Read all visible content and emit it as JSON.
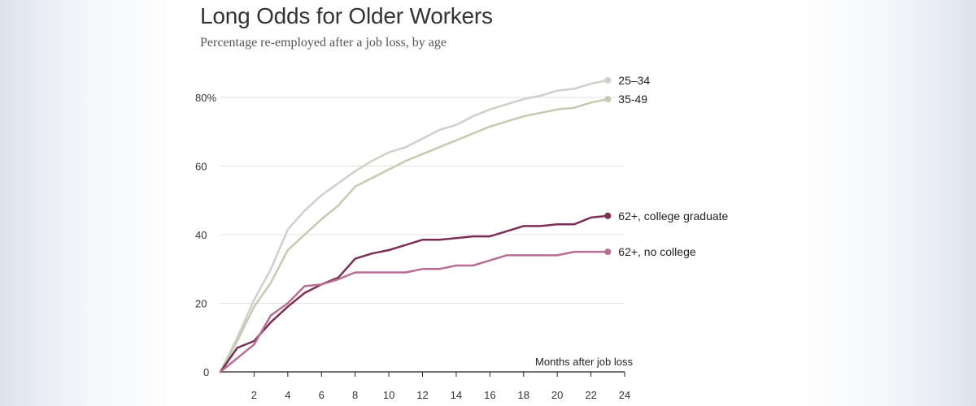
{
  "chart_data": {
    "type": "line",
    "title": "Long Odds for Older Workers",
    "subtitle": "Percentage re-employed after a job loss, by age",
    "xlabel": "Months after job loss",
    "ylabel": "",
    "xlim": [
      0,
      24
    ],
    "ylim": [
      0,
      85
    ],
    "x_ticks": [
      2,
      4,
      6,
      8,
      10,
      12,
      14,
      16,
      18,
      20,
      22,
      24
    ],
    "y_ticks": [
      0,
      20,
      40,
      60,
      80
    ],
    "y_tick_labels": [
      "0",
      "20",
      "40",
      "60",
      "80%"
    ],
    "grid": "horizontal",
    "legend": "direct labels at line ends",
    "x": [
      0,
      1,
      2,
      3,
      4,
      5,
      6,
      7,
      8,
      9,
      10,
      11,
      12,
      13,
      14,
      15,
      16,
      17,
      18,
      19,
      20,
      21,
      22,
      23,
      24
    ],
    "series": [
      {
        "name": "25–34",
        "color": "#cfd0c8",
        "values": [
          0,
          10,
          21,
          30,
          41.5,
          47,
          51.5,
          55,
          58.5,
          61.5,
          64,
          65.5,
          68,
          70.5,
          72,
          74.5,
          76.5,
          78,
          79.5,
          80.5,
          82,
          82.5,
          84,
          85,
          null
        ]
      },
      {
        "name": "35-49",
        "color": "#c9c9b0",
        "values": [
          0,
          9,
          19,
          26,
          35.5,
          40,
          44.5,
          48.5,
          54,
          56.5,
          59,
          61.5,
          63.5,
          65.5,
          67.5,
          69.5,
          71.5,
          73,
          74.5,
          75.5,
          76.5,
          77,
          78.5,
          79.5,
          null
        ]
      },
      {
        "name": "62+, college graduate",
        "color": "#7d2e56",
        "values": [
          0,
          7,
          9,
          14.5,
          19,
          23,
          25.5,
          27.5,
          33,
          34.5,
          35.5,
          37,
          38.5,
          38.5,
          39,
          39.5,
          39.5,
          41,
          42.5,
          42.5,
          43,
          43,
          45,
          45.5,
          null
        ]
      },
      {
        "name": "62+, no college",
        "color": "#b86e93",
        "values": [
          0,
          4,
          8,
          16.5,
          20,
          25,
          25.5,
          27,
          29,
          29,
          29,
          29,
          30,
          30,
          31,
          31,
          32.5,
          34,
          34,
          34,
          34,
          35,
          35,
          35,
          null
        ]
      }
    ]
  }
}
